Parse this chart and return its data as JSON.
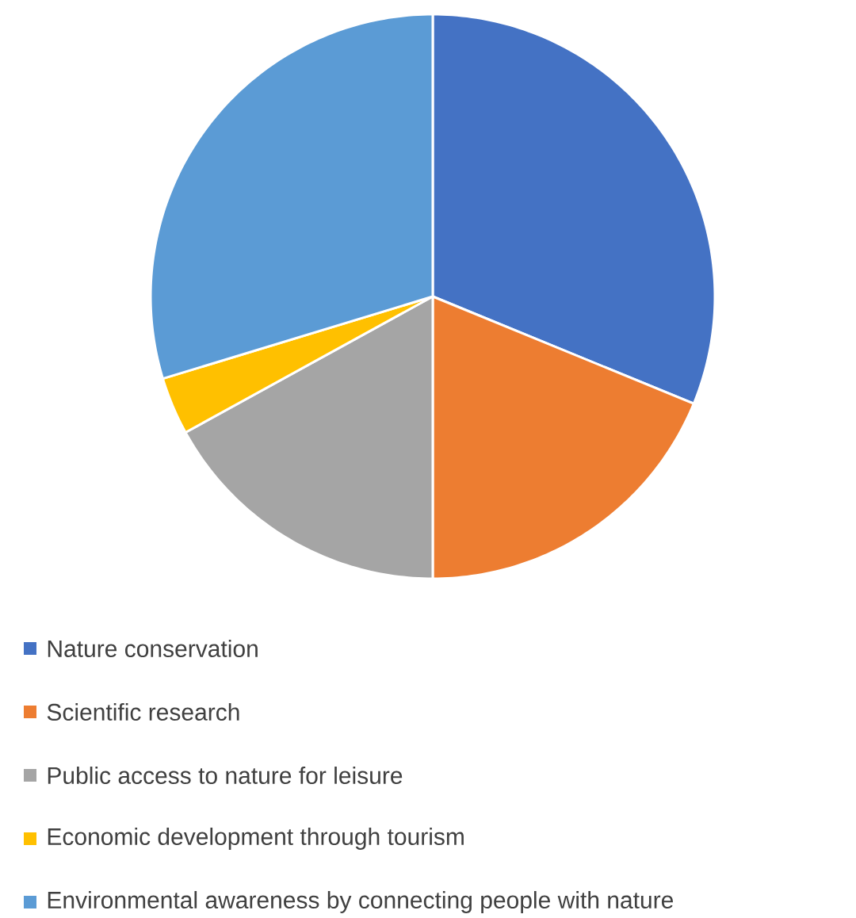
{
  "chart_data": {
    "type": "pie",
    "categories": [
      "Nature conservation",
      "Scientific research",
      "Public access to nature for leisure",
      "Economic development through tourism",
      "Environmental awareness by connecting people with nature"
    ],
    "values": [
      31.2,
      18.8,
      17,
      3.3,
      29.7
    ],
    "colors": [
      "#4472c4",
      "#ed7d31",
      "#a5a5a5",
      "#ffc000",
      "#5b9bd5"
    ],
    "legend": "bottom"
  }
}
